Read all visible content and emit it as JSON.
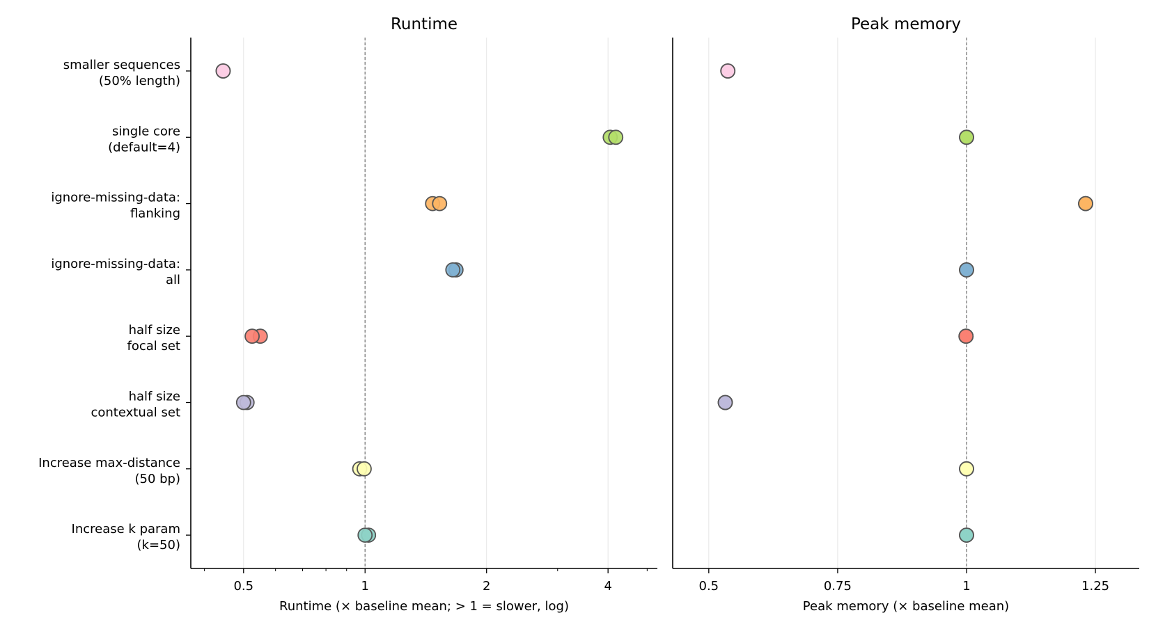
{
  "chart_data": [
    {
      "type": "scatter",
      "title": "Runtime",
      "xlabel": "Runtime  (× baseline mean;  > 1 = slower, log)",
      "xscale": "log",
      "xlim": [
        0.37,
        5.3
      ],
      "xticks": [
        0.5,
        1,
        2,
        4
      ],
      "xtick_labels": [
        "0.5",
        "1",
        "2",
        "4"
      ],
      "reference_line": 1,
      "grid": "vertical at major ticks",
      "categories": [
        "smaller sequences\n(50% length)",
        "single core\n(default=4)",
        "ignore-missing-data:\nflanking",
        "ignore-missing-data:\nall",
        "half size\nfocal set",
        "half size\ncontextual set",
        "Increase max-distance\n(50 bp)",
        "Increase k param\n(k=50)"
      ],
      "series": [
        {
          "category": "smaller sequences\n(50% length)",
          "values": [
            0.445,
            0.445
          ]
        },
        {
          "category": "single core\n(default=4)",
          "values": [
            4.05,
            4.18
          ]
        },
        {
          "category": "ignore-missing-data:\nflanking",
          "values": [
            1.47,
            1.53
          ]
        },
        {
          "category": "ignore-missing-data:\nall",
          "values": [
            1.68,
            1.65
          ]
        },
        {
          "category": "half size\nfocal set",
          "values": [
            0.55,
            0.525
          ]
        },
        {
          "category": "half size\ncontextual set",
          "values": [
            0.51,
            0.5
          ]
        },
        {
          "category": "Increase max-distance\n(50 bp)",
          "values": [
            0.97,
            0.995
          ]
        },
        {
          "category": "Increase k param\n(k=50)",
          "values": [
            1.02,
            1.0
          ]
        }
      ]
    },
    {
      "type": "scatter",
      "title": "Peak memory",
      "xlabel": "Peak memory  (× baseline mean)",
      "xscale": "linear",
      "xlim": [
        0.43,
        1.335
      ],
      "xticks": [
        0.5,
        0.75,
        1,
        1.25
      ],
      "xtick_labels": [
        "0.5",
        "0.75",
        "1",
        "1.25"
      ],
      "reference_line": 1,
      "grid": "vertical at major ticks",
      "series": [
        {
          "category": "smaller sequences\n(50% length)",
          "values": [
            0.537,
            0.537
          ]
        },
        {
          "category": "single core\n(default=4)",
          "values": [
            1.0,
            1.0
          ]
        },
        {
          "category": "ignore-missing-data:\nflanking",
          "values": [
            1.231,
            1.231
          ]
        },
        {
          "category": "ignore-missing-data:\nall",
          "values": [
            1.0,
            1.0
          ]
        },
        {
          "category": "half size\nfocal set",
          "values": [
            0.999,
            0.999
          ]
        },
        {
          "category": "half size\ncontextual set",
          "values": [
            0.532,
            0.532
          ]
        },
        {
          "category": "Increase max-distance\n(50 bp)",
          "values": [
            1.0,
            1.0
          ]
        },
        {
          "category": "Increase k param\n(k=50)",
          "values": [
            1.0,
            1.0
          ]
        }
      ]
    }
  ],
  "colors": {
    "smaller sequences\n(50% length)": "#fccde5",
    "single core\n(default=4)": "#b3de69",
    "ignore-missing-data:\nflanking": "#fdb462",
    "ignore-missing-data:\nall": "#80b1d3",
    "half size\nfocal set": "#fb8072",
    "half size\ncontextual set": "#bebada",
    "Increase max-distance\n(50 bp)": "#ffffb3",
    "Increase k param\n(k=50)": "#8dd3c7",
    "marker_edge": "#555555",
    "reference_line": "#808080",
    "grid": "#e6e6e6"
  }
}
